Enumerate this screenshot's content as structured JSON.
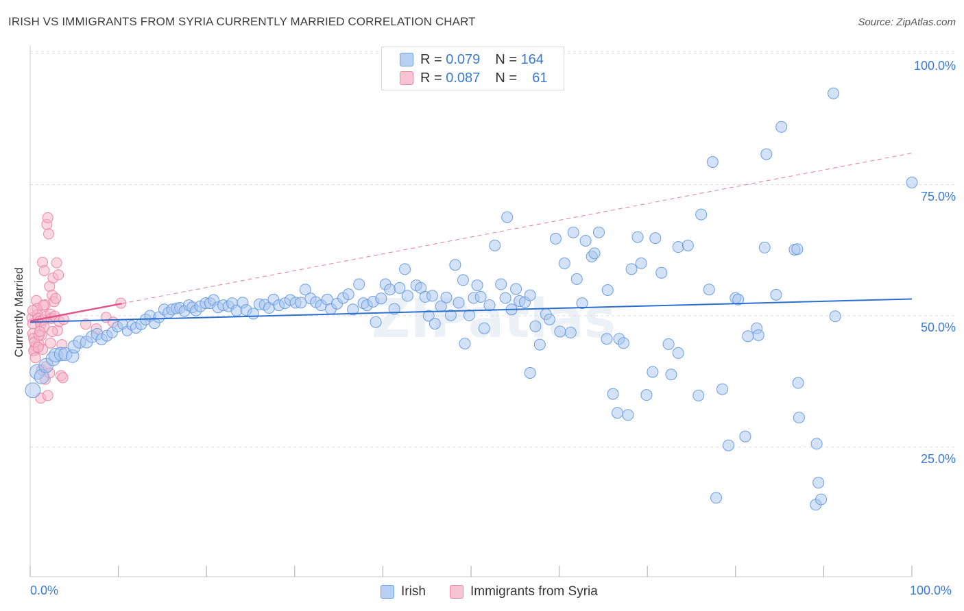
{
  "title": "IRISH VS IMMIGRANTS FROM SYRIA CURRENTLY MARRIED CORRELATION CHART",
  "source": "Source: ZipAtlas.com",
  "watermark": "ZIPatlas",
  "legend": {
    "rows": [
      {
        "r_label": "R =",
        "r_value": "0.079",
        "n_label": "N =",
        "n_value": "164"
      },
      {
        "r_label": "R =",
        "r_value": "0.087",
        "n_label": "N =",
        "n_value": "61"
      }
    ]
  },
  "colors": {
    "irish_fill": "#a9c6f0",
    "irish_stroke": "#6a9ee0",
    "irish_line": "#2a6ed0",
    "syria_fill": "#f6b8cb",
    "syria_stroke": "#ec86a6",
    "syria_line": "#e0558a",
    "grid": "#dddddd",
    "axis_text": "#3a7ad4"
  },
  "chart_data": {
    "type": "scatter",
    "title": "IRISH VS IMMIGRANTS FROM SYRIA CURRENTLY MARRIED CORRELATION CHART",
    "xlabel": "",
    "ylabel": "Currently Married",
    "xlim": [
      0,
      100
    ],
    "ylim": [
      0,
      105
    ],
    "x_tick_labels": [
      "0.0%",
      "100.0%"
    ],
    "y_tick_labels": [
      "25.0%",
      "50.0%",
      "75.0%",
      "100.0%"
    ],
    "y_ticks": [
      25,
      50,
      75,
      100
    ],
    "grid": true,
    "legend_position": "top-center",
    "series": [
      {
        "name": "Irish",
        "R": 0.079,
        "N": 164,
        "trend": {
          "x0": 0,
          "y0": 48.8,
          "x1": 100,
          "y1": 53.2,
          "style": "solid"
        },
        "points": [
          [
            0.3,
            35.8
          ],
          [
            0.8,
            39.3
          ],
          [
            1.3,
            38.4
          ],
          [
            1.8,
            40.5
          ],
          [
            2.6,
            41.8
          ],
          [
            2.9,
            42.5
          ],
          [
            3.5,
            42.7
          ],
          [
            4.0,
            42.7
          ],
          [
            4.8,
            42.3
          ],
          [
            5.0,
            44.1
          ],
          [
            5.6,
            45.0
          ],
          [
            6.4,
            45.0
          ],
          [
            7.0,
            46.0
          ],
          [
            7.6,
            46.5
          ],
          [
            8.1,
            45.5
          ],
          [
            8.7,
            46.2
          ],
          [
            9.3,
            46.8
          ],
          [
            9.9,
            47.9
          ],
          [
            10.5,
            48.4
          ],
          [
            11.0,
            47.1
          ],
          [
            11.5,
            48.2
          ],
          [
            12.0,
            47.7
          ],
          [
            12.6,
            48.4
          ],
          [
            13.1,
            49.3
          ],
          [
            13.6,
            50.0
          ],
          [
            14.1,
            48.6
          ],
          [
            14.6,
            49.7
          ],
          [
            15.2,
            51.2
          ],
          [
            15.7,
            50.6
          ],
          [
            16.1,
            51.2
          ],
          [
            16.6,
            51.4
          ],
          [
            17.0,
            51.5
          ],
          [
            17.5,
            50.9
          ],
          [
            18.0,
            52.0
          ],
          [
            18.4,
            51.6
          ],
          [
            18.8,
            51.0
          ],
          [
            19.3,
            51.8
          ],
          [
            19.9,
            52.4
          ],
          [
            20.4,
            52.4
          ],
          [
            20.8,
            53.0
          ],
          [
            21.3,
            51.6
          ],
          [
            21.9,
            52.0
          ],
          [
            22.5,
            51.8
          ],
          [
            22.9,
            52.4
          ],
          [
            23.4,
            51.0
          ],
          [
            24.1,
            52.5
          ],
          [
            24.5,
            51.1
          ],
          [
            25.3,
            50.4
          ],
          [
            26.0,
            52.2
          ],
          [
            26.6,
            52.1
          ],
          [
            27.1,
            51.5
          ],
          [
            27.6,
            53.1
          ],
          [
            28.2,
            52.0
          ],
          [
            28.9,
            52.4
          ],
          [
            29.5,
            53.0
          ],
          [
            30.1,
            52.5
          ],
          [
            30.7,
            52.5
          ],
          [
            31.2,
            55.0
          ],
          [
            31.8,
            53.3
          ],
          [
            32.4,
            52.6
          ],
          [
            33.0,
            52.0
          ],
          [
            33.7,
            53.1
          ],
          [
            34.1,
            51.3
          ],
          [
            34.8,
            52.3
          ],
          [
            35.5,
            53.4
          ],
          [
            36.1,
            54.1
          ],
          [
            36.6,
            51.2
          ],
          [
            37.3,
            56.0
          ],
          [
            37.8,
            52.4
          ],
          [
            38.2,
            52.0
          ],
          [
            38.9,
            52.7
          ],
          [
            39.2,
            48.8
          ],
          [
            39.8,
            53.3
          ],
          [
            40.3,
            56.0
          ],
          [
            40.8,
            55.0
          ],
          [
            41.3,
            51.3
          ],
          [
            41.9,
            55.3
          ],
          [
            42.5,
            58.9
          ],
          [
            42.8,
            53.8
          ],
          [
            43.8,
            55.8
          ],
          [
            44.3,
            55.3
          ],
          [
            44.8,
            53.6
          ],
          [
            45.2,
            50.0
          ],
          [
            45.6,
            53.8
          ],
          [
            45.9,
            48.5
          ],
          [
            46.6,
            51.8
          ],
          [
            47.2,
            53.5
          ],
          [
            47.7,
            50.1
          ],
          [
            48.2,
            59.7
          ],
          [
            48.6,
            52.5
          ],
          [
            49.1,
            56.8
          ],
          [
            49.3,
            44.7
          ],
          [
            49.8,
            50.1
          ],
          [
            50.3,
            53.4
          ],
          [
            50.7,
            55.8
          ],
          [
            51.1,
            53.6
          ],
          [
            51.5,
            47.6
          ],
          [
            52.1,
            52.0
          ],
          [
            52.7,
            63.4
          ],
          [
            53.4,
            56.0
          ],
          [
            53.9,
            53.4
          ],
          [
            54.1,
            68.8
          ],
          [
            54.6,
            51.2
          ],
          [
            55.1,
            55.1
          ],
          [
            55.5,
            52.8
          ],
          [
            56.1,
            52.6
          ],
          [
            56.7,
            53.9
          ],
          [
            56.7,
            39.1
          ],
          [
            57.3,
            48.0
          ],
          [
            57.8,
            44.5
          ],
          [
            58.5,
            50.3
          ],
          [
            58.9,
            49.3
          ],
          [
            59.6,
            64.7
          ],
          [
            60.1,
            47.0
          ],
          [
            60.6,
            60.0
          ],
          [
            61.3,
            46.8
          ],
          [
            61.6,
            65.9
          ],
          [
            62.0,
            57.0
          ],
          [
            62.6,
            52.4
          ],
          [
            63.0,
            64.3
          ],
          [
            63.7,
            61.3
          ],
          [
            64.0,
            61.9
          ],
          [
            64.5,
            65.9
          ],
          [
            65.4,
            45.6
          ],
          [
            65.5,
            54.9
          ],
          [
            66.1,
            35.1
          ],
          [
            66.6,
            31.5
          ],
          [
            66.8,
            45.6
          ],
          [
            67.3,
            44.8
          ],
          [
            67.8,
            31.1
          ],
          [
            68.2,
            58.9
          ],
          [
            68.9,
            65.0
          ],
          [
            69.3,
            60.0
          ],
          [
            69.9,
            34.9
          ],
          [
            70.6,
            39.3
          ],
          [
            70.9,
            64.8
          ],
          [
            71.6,
            58.2
          ],
          [
            72.4,
            44.6
          ],
          [
            72.7,
            38.8
          ],
          [
            73.5,
            63.1
          ],
          [
            73.5,
            42.9
          ],
          [
            74.6,
            63.4
          ],
          [
            75.8,
            34.8
          ],
          [
            76.1,
            69.3
          ],
          [
            77.0,
            55.0
          ],
          [
            77.4,
            79.3
          ],
          [
            77.8,
            15.3
          ],
          [
            78.5,
            36.0
          ],
          [
            79.2,
            25.3
          ],
          [
            80.0,
            53.4
          ],
          [
            80.3,
            53.1
          ],
          [
            81.1,
            27.0
          ],
          [
            81.4,
            46.1
          ],
          [
            82.4,
            47.6
          ],
          [
            82.6,
            46.3
          ],
          [
            83.3,
            63.0
          ],
          [
            83.5,
            80.8
          ],
          [
            84.6,
            54.0
          ],
          [
            85.2,
            86.0
          ],
          [
            86.7,
            62.6
          ],
          [
            87.0,
            62.7
          ],
          [
            87.1,
            37.2
          ],
          [
            87.2,
            30.6
          ],
          [
            89.1,
            14.0
          ],
          [
            89.2,
            25.6
          ],
          [
            89.4,
            18.2
          ],
          [
            89.7,
            15.0
          ],
          [
            91.1,
            92.4
          ],
          [
            91.3,
            49.9
          ],
          [
            100,
            75.4
          ]
        ]
      },
      {
        "name": "Immigrants from Syria",
        "R": 0.087,
        "N": 61,
        "trend": {
          "x0": 0,
          "y0": 49.0,
          "x1": 100,
          "y1": 81.0,
          "style": "solid-then-dashed",
          "solid_until_x": 10.4
        },
        "points": [
          [
            0.2,
            49.6
          ],
          [
            0.3,
            48.5
          ],
          [
            0.3,
            46.6
          ],
          [
            0.4,
            45.7
          ],
          [
            0.5,
            43.6
          ],
          [
            0.6,
            44.2
          ],
          [
            0.7,
            52.9
          ],
          [
            0.8,
            51.4
          ],
          [
            0.8,
            50.2
          ],
          [
            0.9,
            49.5
          ],
          [
            1.0,
            44.5
          ],
          [
            1.1,
            49.0
          ],
          [
            1.2,
            48.3
          ],
          [
            1.3,
            46.3
          ],
          [
            1.4,
            60.2
          ],
          [
            1.4,
            43.6
          ],
          [
            1.5,
            49.2
          ],
          [
            1.6,
            58.6
          ],
          [
            1.6,
            47.9
          ],
          [
            1.7,
            52.1
          ],
          [
            1.8,
            49.9
          ],
          [
            1.9,
            67.4
          ],
          [
            2.0,
            68.7
          ],
          [
            2.1,
            65.6
          ],
          [
            2.2,
            55.6
          ],
          [
            2.3,
            50.3
          ],
          [
            2.4,
            49.5
          ],
          [
            2.5,
            53.9
          ],
          [
            2.6,
            57.2
          ],
          [
            2.7,
            52.7
          ],
          [
            2.8,
            49.9
          ],
          [
            2.9,
            53.3
          ],
          [
            3.0,
            60.1
          ],
          [
            3.1,
            47.2
          ],
          [
            3.2,
            57.8
          ],
          [
            3.3,
            48.9
          ],
          [
            3.5,
            38.6
          ],
          [
            3.6,
            44.5
          ],
          [
            3.7,
            38.2
          ],
          [
            0.4,
            43.3
          ],
          [
            0.5,
            45.0
          ],
          [
            0.6,
            42.0
          ],
          [
            0.9,
            44.0
          ],
          [
            1.0,
            46.3
          ],
          [
            1.1,
            47.0
          ],
          [
            1.2,
            34.3
          ],
          [
            1.3,
            39.7
          ],
          [
            1.5,
            52.0
          ],
          [
            1.7,
            37.9
          ],
          [
            1.8,
            40.3
          ],
          [
            2.0,
            34.8
          ],
          [
            2.2,
            39.1
          ],
          [
            2.3,
            44.8
          ],
          [
            2.5,
            47.0
          ],
          [
            6.3,
            48.4
          ],
          [
            7.5,
            47.5
          ],
          [
            8.6,
            49.7
          ],
          [
            9.4,
            48.8
          ],
          [
            10.3,
            52.4
          ],
          [
            3.8,
            49.3
          ],
          [
            0.3,
            51.0
          ]
        ]
      }
    ]
  }
}
